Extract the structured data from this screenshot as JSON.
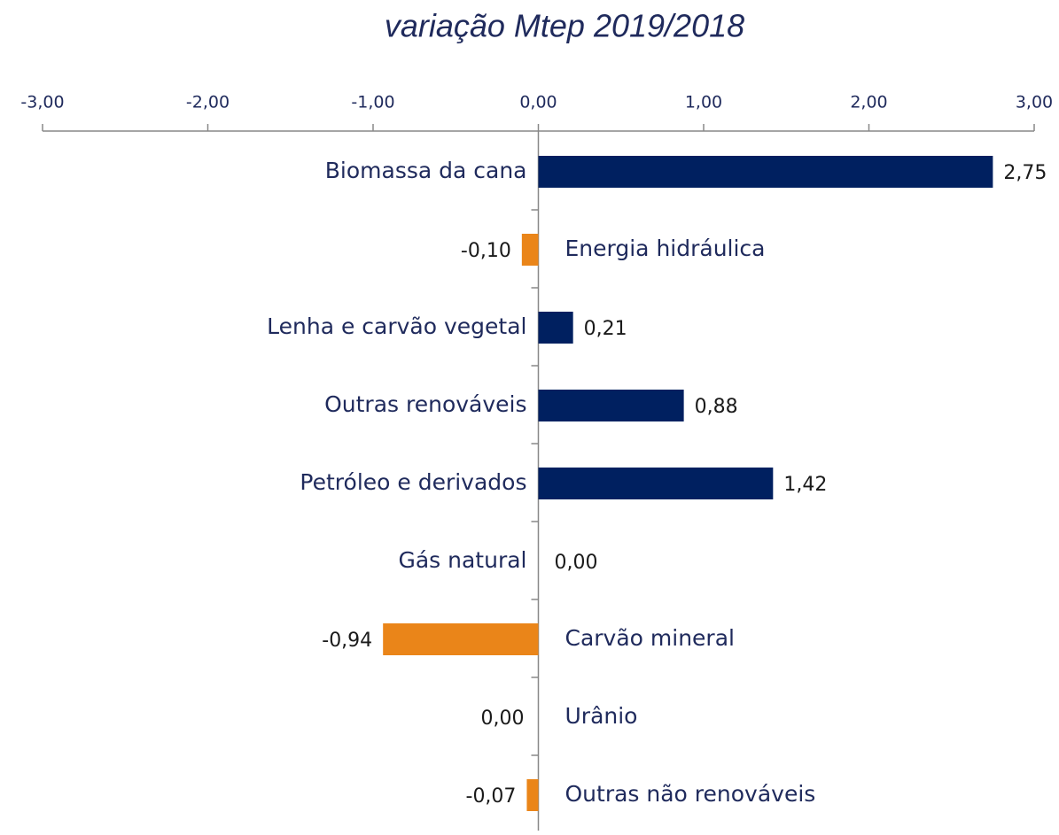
{
  "chart_data": {
    "type": "bar",
    "orientation": "horizontal",
    "title": "variação Mtep 2019/2018",
    "categories": [
      "Biomassa da cana",
      "Energia hidráulica",
      "Lenha e carvão vegetal",
      "Outras renováveis",
      "Petróleo e derivados",
      "Gás natural",
      "Carvão mineral",
      "Urânio",
      "Outras  não renováveis"
    ],
    "values": [
      2.75,
      -0.1,
      0.21,
      0.88,
      1.42,
      0.0,
      -0.94,
      0.0,
      -0.07
    ],
    "value_labels": [
      "2,75",
      "-0,10",
      "0,21",
      "0,88",
      "1,42",
      "0,00",
      "-0,94",
      "0,00",
      "-0,07"
    ],
    "color": "#002060",
    "negative_color": "#ea8519",
    "xlim": [
      -3,
      3
    ],
    "xticks": [
      {
        "value": -3,
        "label": "-3,00"
      },
      {
        "value": -2,
        "label": "-2,00"
      },
      {
        "value": -1,
        "label": "-1,00"
      },
      {
        "value": 0,
        "label": "0,00"
      },
      {
        "value": 1,
        "label": "1,00"
      },
      {
        "value": 2,
        "label": "2,00"
      },
      {
        "value": 3,
        "label": "3,00"
      }
    ],
    "grid": false
  }
}
